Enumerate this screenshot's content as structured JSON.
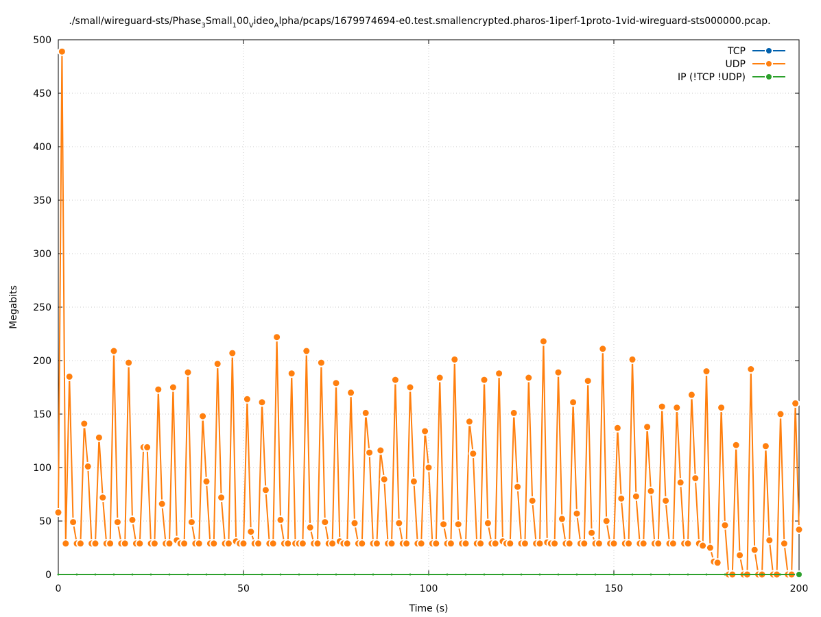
{
  "chart_data": {
    "type": "line",
    "title": {
      "parts": [
        {
          "t": "./small/wireguard-sts/Phase",
          "s": "n"
        },
        {
          "t": "3",
          "s": "sub"
        },
        {
          "t": "S",
          "s": "n"
        },
        {
          "t": "mall",
          "s": "n"
        },
        {
          "t": "1",
          "s": "sub"
        },
        {
          "t": "00",
          "s": "n"
        },
        {
          "t": "V",
          "s": "sub"
        },
        {
          "t": "ideo",
          "s": "n"
        },
        {
          "t": "A",
          "s": "sub"
        },
        {
          "t": "lpha/pcaps/1679974694-e0.test.smallencrypted.pharos-1iperf-1proto-1vid-wireguard-sts000000.pcap.",
          "s": "n"
        }
      ]
    },
    "xlabel": "Time (s)",
    "ylabel": "Megabits",
    "xlim": [
      0,
      200
    ],
    "ylim": [
      0,
      500
    ],
    "xticks": [
      0,
      50,
      100,
      150,
      200
    ],
    "yticks": [
      0,
      50,
      100,
      150,
      200,
      250,
      300,
      350,
      400,
      450,
      500
    ],
    "grid": true,
    "legend_position": "top-right",
    "series": [
      {
        "name": "TCP",
        "color": "#0060ad",
        "x": [],
        "y": []
      },
      {
        "name": "UDP",
        "color": "#ff7f0e",
        "x": [
          0,
          1,
          2,
          3,
          4,
          5,
          6,
          7,
          8,
          9,
          10,
          11,
          12,
          13,
          14,
          15,
          16,
          17,
          18,
          19,
          20,
          21,
          22,
          23,
          24,
          25,
          26,
          27,
          28,
          29,
          30,
          31,
          32,
          33,
          34,
          35,
          36,
          37,
          38,
          39,
          40,
          41,
          42,
          43,
          44,
          45,
          46,
          47,
          48,
          49,
          50,
          51,
          52,
          53,
          54,
          55,
          56,
          57,
          58,
          59,
          60,
          61,
          62,
          63,
          64,
          65,
          66,
          67,
          68,
          69,
          70,
          71,
          72,
          73,
          74,
          75,
          76,
          77,
          78,
          79,
          80,
          81,
          82,
          83,
          84,
          85,
          86,
          87,
          88,
          89,
          90,
          91,
          92,
          93,
          94,
          95,
          96,
          97,
          98,
          99,
          100,
          101,
          102,
          103,
          104,
          105,
          106,
          107,
          108,
          109,
          110,
          111,
          112,
          113,
          114,
          115,
          116,
          117,
          118,
          119,
          120,
          121,
          122,
          123,
          124,
          125,
          126,
          127,
          128,
          129,
          130,
          131,
          132,
          133,
          134,
          135,
          136,
          137,
          138,
          139,
          140,
          141,
          142,
          143,
          144,
          145,
          146,
          147,
          148,
          149,
          150,
          151,
          152,
          153,
          154,
          155,
          156,
          157,
          158,
          159,
          160,
          161,
          162,
          163,
          164,
          165,
          166,
          167,
          168,
          169,
          170,
          171,
          172,
          173,
          174,
          175,
          176,
          177,
          178,
          179,
          180,
          181,
          182,
          183,
          184,
          185,
          186,
          187,
          188,
          189,
          190,
          191,
          192,
          193,
          194,
          195,
          196,
          197,
          198,
          199,
          200
        ],
        "y": [
          58,
          489,
          29,
          185,
          49,
          29,
          29,
          141,
          101,
          29,
          29,
          128,
          72,
          29,
          29,
          209,
          49,
          29,
          29,
          198,
          51,
          29,
          29,
          119,
          119,
          29,
          29,
          173,
          66,
          29,
          29,
          175,
          32,
          29,
          29,
          189,
          49,
          29,
          29,
          148,
          87,
          29,
          29,
          197,
          72,
          29,
          29,
          207,
          31,
          29,
          29,
          164,
          40,
          29,
          29,
          161,
          79,
          29,
          29,
          222,
          51,
          29,
          29,
          188,
          29,
          29,
          29,
          209,
          44,
          29,
          29,
          198,
          49,
          29,
          29,
          179,
          31,
          29,
          29,
          170,
          48,
          29,
          29,
          151,
          114,
          29,
          29,
          116,
          89,
          29,
          29,
          182,
          48,
          29,
          29,
          175,
          87,
          29,
          29,
          134,
          100,
          29,
          29,
          184,
          47,
          29,
          29,
          201,
          47,
          29,
          29,
          143,
          113,
          29,
          29,
          182,
          48,
          29,
          29,
          188,
          31,
          29,
          29,
          151,
          82,
          29,
          29,
          184,
          69,
          29,
          29,
          218,
          30,
          29,
          29,
          189,
          52,
          29,
          29,
          161,
          57,
          29,
          29,
          181,
          39,
          29,
          29,
          211,
          50,
          29,
          29,
          137,
          71,
          29,
          29,
          201,
          73,
          29,
          29,
          138,
          78,
          29,
          29,
          157,
          69,
          29,
          29,
          156,
          86,
          29,
          29,
          168,
          90,
          29,
          27,
          190,
          25,
          12,
          11,
          156,
          46,
          0,
          0,
          121,
          18,
          0,
          0,
          192,
          23,
          0,
          0,
          120,
          32,
          0,
          0,
          150,
          29,
          0,
          0,
          160,
          42
        ]
      },
      {
        "name": "IP (!TCP  !UDP)",
        "color": "#2ca02c",
        "x": [
          0,
          5,
          10,
          15,
          20,
          25,
          30,
          35,
          40,
          45,
          50,
          55,
          60,
          65,
          70,
          75,
          80,
          85,
          90,
          95,
          100,
          105,
          110,
          115,
          120,
          125,
          130,
          135,
          140,
          145,
          150,
          155,
          160,
          165,
          170,
          175,
          180,
          185,
          190,
          195,
          200
        ],
        "y": [
          0,
          0,
          0,
          0,
          0,
          0,
          0,
          0,
          0,
          0,
          0,
          0,
          0,
          0,
          0,
          0,
          0,
          0,
          0,
          0,
          0,
          0,
          0,
          0,
          0,
          0,
          0,
          0,
          0,
          0,
          0,
          0,
          0,
          0,
          0,
          0,
          0,
          0,
          0,
          0,
          0
        ]
      }
    ]
  }
}
